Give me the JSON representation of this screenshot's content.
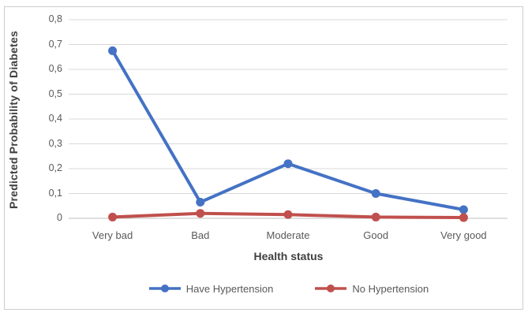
{
  "chart_data": {
    "type": "line",
    "title": "",
    "xlabel": "Health status",
    "ylabel": "Predicted Probability of Diabetes",
    "categories": [
      "Very bad",
      "Bad",
      "Moderate",
      "Good",
      "Very good"
    ],
    "series": [
      {
        "name": "Have Hypertension",
        "color": "#4472C4",
        "values": [
          0.675,
          0.065,
          0.22,
          0.1,
          0.035
        ]
      },
      {
        "name": "No Hypertension",
        "color": "#C0504D",
        "values": [
          0.005,
          0.02,
          0.015,
          0.005,
          0.003
        ]
      }
    ],
    "ylim": [
      0,
      0.8
    ],
    "ytick_labels": [
      "0",
      "0,1",
      "0,2",
      "0,3",
      "0,4",
      "0,5",
      "0,6",
      "0,7",
      "0,8"
    ],
    "grid": "horizontal",
    "legend_position": "bottom"
  },
  "colors": {
    "gridline": "#d9d9d9",
    "axis_line": "#bfbfbf",
    "tick_text": "#595959",
    "title_text": "#3f3f3f",
    "frame_border": "#cfcdcd",
    "background": "#ffffff"
  }
}
